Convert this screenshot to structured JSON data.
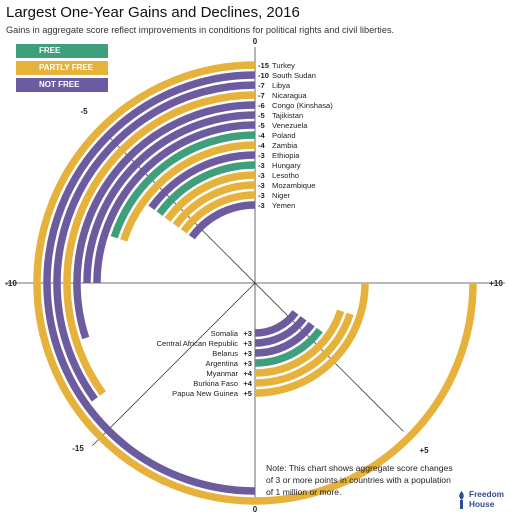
{
  "title": "Largest One-Year Gains and Declines, 2016",
  "subtitle": "Gains in aggregate score reflect improvements in conditions for political rights and civil liberties.",
  "note": "Note: This chart shows aggregate score changes of 3 or more points in countries with a population of 1 million or more.",
  "logo": {
    "line1": "Freedom",
    "line2": "House"
  },
  "colors": {
    "FREE": "#3f9e7c",
    "PARTLY FREE": "#e6b23c",
    "NOT FREE": "#6c5b9f"
  },
  "legend": [
    {
      "label": "FREE",
      "color": "#3f9e7c"
    },
    {
      "label": "PARTLY FREE",
      "color": "#e6b23c"
    },
    {
      "label": "NOT FREE",
      "color": "#6c5b9f"
    }
  ],
  "chart_data": {
    "type": "bar",
    "layout": "radial",
    "axis_labels": {
      "top": "0",
      "upper_left": "-5",
      "left": "-10",
      "lower_left": "-15",
      "right": "+10",
      "lower_right": "+5",
      "bottom": "0"
    },
    "declines": [
      {
        "country": "Turkey",
        "value": -15,
        "label": "-15",
        "status": "PARTLY FREE"
      },
      {
        "country": "South Sudan",
        "value": -10,
        "label": "-10",
        "status": "NOT FREE"
      },
      {
        "country": "Libya",
        "value": -7,
        "label": "-7",
        "status": "NOT FREE"
      },
      {
        "country": "Nicaragua",
        "value": -7,
        "label": "-7",
        "status": "PARTLY FREE"
      },
      {
        "country": "Congo (Kinshasa)",
        "value": -6,
        "label": "-6",
        "status": "NOT FREE"
      },
      {
        "country": "Tajikistan",
        "value": -5,
        "label": "-5",
        "status": "NOT FREE"
      },
      {
        "country": "Venezuela",
        "value": -5,
        "label": "-5",
        "status": "NOT FREE"
      },
      {
        "country": "Poland",
        "value": -4,
        "label": "-4",
        "status": "FREE"
      },
      {
        "country": "Zambia",
        "value": -4,
        "label": "-4",
        "status": "PARTLY FREE"
      },
      {
        "country": "Ethiopia",
        "value": -3,
        "label": "-3",
        "status": "NOT FREE"
      },
      {
        "country": "Hungary",
        "value": -3,
        "label": "-3",
        "status": "FREE"
      },
      {
        "country": "Lesotho",
        "value": -3,
        "label": "-3",
        "status": "PARTLY FREE"
      },
      {
        "country": "Mozambique",
        "value": -3,
        "label": "-3",
        "status": "PARTLY FREE"
      },
      {
        "country": "Niger",
        "value": -3,
        "label": "-3",
        "status": "PARTLY FREE"
      },
      {
        "country": "Yemen",
        "value": -3,
        "label": "-3",
        "status": "NOT FREE"
      }
    ],
    "gains": [
      {
        "country": "Somalia",
        "value": 3,
        "label": "+3",
        "status": "NOT FREE"
      },
      {
        "country": "Central African Republic",
        "value": 3,
        "label": "+3",
        "status": "NOT FREE"
      },
      {
        "country": "Belarus",
        "value": 3,
        "label": "+3",
        "status": "NOT FREE"
      },
      {
        "country": "Argentina",
        "value": 3,
        "label": "+3",
        "status": "FREE"
      },
      {
        "country": "Myanmar",
        "value": 4,
        "label": "+4",
        "status": "PARTLY FREE"
      },
      {
        "country": "Burkina Faso",
        "value": 4,
        "label": "+4",
        "status": "PARTLY FREE"
      },
      {
        "country": "Papua New Guinea",
        "value": 5,
        "label": "+5",
        "status": "PARTLY FREE"
      }
    ]
  }
}
